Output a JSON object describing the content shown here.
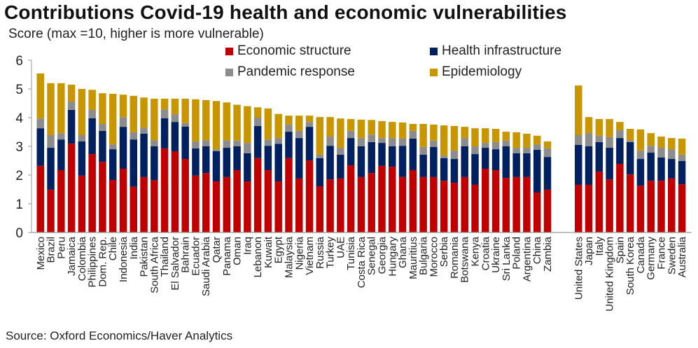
{
  "chart_data": {
    "type": "bar",
    "stacked": true,
    "title": "Contributions Covid-19 health and economic vulnerabilities",
    "ylabel": "Score (max =10, higher is more vulnerable)",
    "xlabel": "",
    "ylim": [
      0,
      6
    ],
    "yticks": [
      0,
      1,
      2,
      3,
      4,
      5,
      6
    ],
    "legend_position": "top-right",
    "source": "Source: Oxford Economics/Haver Analytics",
    "series_meta": [
      {
        "name": "Economic structure",
        "color": "#C00000"
      },
      {
        "name": "Health infrastructure",
        "color": "#002060"
      },
      {
        "name": "Pandemic response",
        "color": "#8C8C8C"
      },
      {
        "name": "Epidemiology",
        "color": "#C89600"
      }
    ],
    "groups": [
      {
        "categories": [
          "Mexico",
          "Brazil",
          "Peru",
          "Jamaica",
          "Colombia",
          "Philippines",
          "Dom. Rep.",
          "Chile",
          "Indonesia",
          "India",
          "Pakistan",
          "South Africa",
          "Thailand",
          "El Salvador",
          "Bahrain",
          "Ecuador",
          "Saudi Arabia",
          "Qatar",
          "Panama",
          "Oman",
          "Iraq",
          "Lebanon",
          "Kuwait",
          "Egypt",
          "Malaysia",
          "Nigeria",
          "Vietnam",
          "Russia",
          "Turkey",
          "UAE",
          "Tunisia",
          "Costa Rica",
          "Senegal",
          "Georgia",
          "Hungary",
          "Ghana",
          "Mauritius",
          "Bulgaria",
          "Morocco",
          "Serbia",
          "Romania",
          "Botswana",
          "Kenya",
          "Croatia",
          "Ukraine",
          "Sri Lanka",
          "Poland",
          "Argentina",
          "China",
          "Zambia"
        ],
        "series": [
          {
            "name": "Economic structure",
            "values": [
              2.32,
              1.49,
              2.17,
              3.1,
              1.98,
              2.73,
              2.46,
              1.83,
              2.22,
              1.59,
              1.93,
              1.82,
              2.93,
              2.83,
              2.56,
              1.98,
              2.07,
              1.78,
              1.93,
              2.17,
              1.78,
              2.59,
              2.17,
              1.78,
              2.59,
              1.88,
              2.51,
              1.61,
              1.85,
              1.88,
              2.34,
              1.93,
              2.07,
              2.32,
              2.29,
              1.93,
              2.17,
              1.93,
              1.93,
              1.8,
              1.73,
              1.93,
              1.66,
              2.22,
              2.17,
              1.9,
              1.93,
              1.93,
              1.39,
              1.49
            ]
          },
          {
            "name": "Health infrastructure",
            "values": [
              1.31,
              1.46,
              1.07,
              1.17,
              1.19,
              1.25,
              1.08,
              1.07,
              1.46,
              1.65,
              1.51,
              1.18,
              1.05,
              1.02,
              1.13,
              0.95,
              0.93,
              1.05,
              1.02,
              0.83,
              0.98,
              1.12,
              0.85,
              1.31,
              0.92,
              1.41,
              1.17,
              0.98,
              1.17,
              0.83,
              0.95,
              1.07,
              1.08,
              0.8,
              0.71,
              1.09,
              1.1,
              0.78,
              1.05,
              0.79,
              0.83,
              1.07,
              1.07,
              0.73,
              0.73,
              1.1,
              0.83,
              0.83,
              1.49,
              1.14
            ]
          },
          {
            "name": "Pandemic response",
            "values": [
              0.34,
              0.44,
              0.22,
              0.29,
              0.22,
              0.29,
              0.24,
              0.17,
              0.34,
              0.25,
              0.21,
              0.21,
              0.31,
              0.27,
              0.12,
              0.24,
              0.21,
              0.07,
              0.26,
              0.2,
              0.36,
              0.29,
              0.22,
              0.2,
              0.25,
              0.25,
              0.17,
              0.12,
              0.32,
              0.24,
              0.25,
              0.29,
              0.26,
              0.17,
              0.29,
              0.25,
              0.27,
              0.27,
              0.22,
              0.09,
              0.29,
              0.29,
              0.27,
              0.17,
              0.25,
              0.2,
              0.19,
              0.19,
              0.19,
              0.3
            ]
          },
          {
            "name": "Epidemiology",
            "values": [
              1.57,
              1.81,
              1.74,
              0.59,
              1.61,
              0.7,
              1.07,
              1.76,
              0.78,
              1.27,
              1.05,
              1.45,
              0.37,
              0.54,
              0.85,
              1.47,
              1.4,
              1.68,
              1.32,
              1.25,
              1.28,
              0.36,
              1.08,
              0.84,
              0.31,
              0.53,
              0.22,
              1.31,
              0.68,
              1.02,
              0.41,
              0.64,
              0.51,
              0.59,
              0.56,
              0.56,
              0.24,
              0.8,
              0.56,
              1.05,
              0.86,
              0.39,
              0.63,
              0.51,
              0.46,
              0.31,
              0.54,
              0.49,
              0.3,
              0.24
            ]
          }
        ]
      },
      {
        "categories": [
          "United States",
          "Japan",
          "Italy",
          "United Kingdom",
          "Spain",
          "South Korea",
          "Canada",
          "Germany",
          "France",
          "Sweden",
          "Australia"
        ],
        "series": [
          {
            "name": "Economic structure",
            "values": [
              1.66,
              1.66,
              2.12,
              1.85,
              2.39,
              2.02,
              1.63,
              1.8,
              1.8,
              1.88,
              1.68
            ]
          },
          {
            "name": "Health infrastructure",
            "values": [
              1.39,
              1.34,
              1.03,
              1.1,
              0.9,
              1.13,
              0.93,
              0.98,
              0.81,
              0.68,
              0.81
            ]
          },
          {
            "name": "Pandemic response",
            "values": [
              0.34,
              0.46,
              0.22,
              0.37,
              0.27,
              0.06,
              0.29,
              0.24,
              0.34,
              0.34,
              0.22
            ]
          },
          {
            "name": "Epidemiology",
            "values": [
              1.73,
              0.56,
              0.58,
              0.63,
              0.29,
              0.4,
              0.74,
              0.44,
              0.39,
              0.39,
              0.56
            ]
          }
        ]
      }
    ]
  },
  "header": {
    "title": "Contributions Covid-19 health and economic vulnerabilities",
    "subtitle": "Score (max =10, higher is more vulnerable)"
  },
  "legend": {
    "items": [
      {
        "label": "Economic structure",
        "color": "#C00000",
        "icon": "square-swatch"
      },
      {
        "label": "Health infrastructure",
        "color": "#002060",
        "icon": "square-swatch"
      },
      {
        "label": "Pandemic response",
        "color": "#8C8C8C",
        "icon": "square-swatch"
      },
      {
        "label": "Epidemiology",
        "color": "#C89600",
        "icon": "square-swatch"
      }
    ]
  },
  "footer": {
    "source": "Source: Oxford Economics/Haver Analytics"
  }
}
